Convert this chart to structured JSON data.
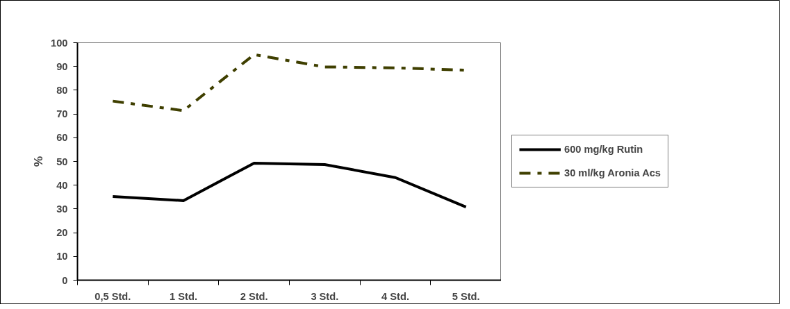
{
  "chart_data": {
    "type": "line",
    "ylabel": "%",
    "categories": [
      "0,5 Std.",
      "1 Std.",
      "2 Std.",
      "3 Std.",
      "4 Std.",
      "5 Std."
    ],
    "series": [
      {
        "name": "600 mg/kg Rutin",
        "color": "#000000",
        "line_style": "solid",
        "values": [
          35.2,
          33.5,
          49.3,
          48.7,
          43.2,
          30.8
        ]
      },
      {
        "name": "30 ml/kg Aronia Acs",
        "color": "#3f3f00",
        "line_style": "dashed",
        "values": [
          75.4,
          71.4,
          95,
          89.8,
          89.4,
          88.4
        ]
      }
    ],
    "ylim": [
      0,
      100
    ],
    "yticks": [
      0,
      10,
      20,
      30,
      40,
      50,
      60,
      70,
      80,
      90,
      100
    ],
    "grid": false,
    "legend": "right",
    "marker": "none"
  }
}
